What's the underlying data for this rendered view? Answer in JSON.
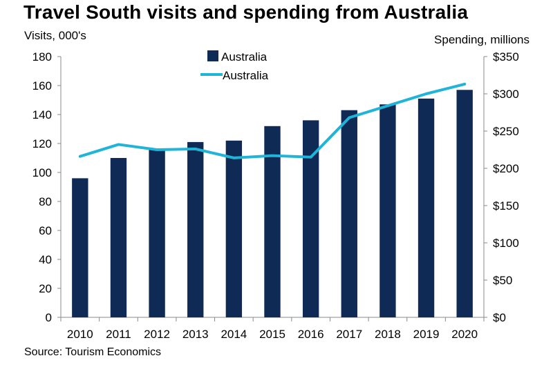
{
  "chart_data": {
    "type": "bar+line",
    "title": "Travel South visits and spending from Australia",
    "ylabel_left": "Visits, 000's",
    "ylabel_right": "Spending, millions",
    "categories": [
      "2010",
      "2011",
      "2012",
      "2013",
      "2014",
      "2015",
      "2016",
      "2017",
      "2018",
      "2019",
      "2020"
    ],
    "left_axis": {
      "min": 0,
      "max": 180,
      "step": 20,
      "ticks": [
        "0",
        "20",
        "40",
        "60",
        "80",
        "100",
        "120",
        "140",
        "160",
        "180"
      ]
    },
    "right_axis": {
      "min": 0,
      "max": 350,
      "step": 50,
      "ticks": [
        "$0",
        "$50",
        "$100",
        "$150",
        "$200",
        "$250",
        "$300",
        "$350"
      ]
    },
    "series": [
      {
        "name": "Australia",
        "kind": "bar",
        "axis": "left",
        "color": "#0f2a55",
        "values": [
          96,
          110,
          116,
          121,
          122,
          132,
          136,
          143,
          147,
          151,
          157
        ]
      },
      {
        "name": "Australia",
        "kind": "line",
        "axis": "right",
        "color": "#1fb4d8",
        "values": [
          216,
          232,
          225,
          226,
          214,
          217,
          215,
          268,
          284,
          300,
          313
        ]
      }
    ],
    "legend": {
      "position": "top-center",
      "bar_label": "Australia",
      "line_label": "Australia"
    },
    "source": "Source: Tourism Economics"
  }
}
